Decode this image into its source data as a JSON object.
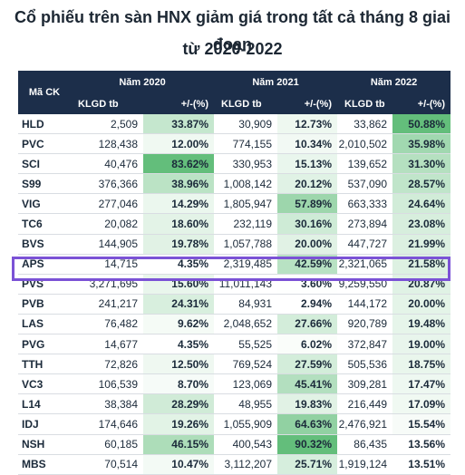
{
  "title": {
    "line1": "Cổ phiếu trên sàn HNX giảm giá trong tất cả tháng 8 giai đoạn",
    "line2": "từ 2020-2022"
  },
  "headers": {
    "code": "Mã CK",
    "years": [
      "Năm 2020",
      "Năm 2021",
      "Năm 2022"
    ],
    "klgd": "KLGD tb",
    "pct": "+/-(%)"
  },
  "rows": [
    {
      "code": "HLD",
      "v2020": "2,509",
      "p2020": "33.87%",
      "v2021": "30,909",
      "p2021": "12.73%",
      "v2022": "33,862",
      "p2022": "50.88%"
    },
    {
      "code": "PVC",
      "v2020": "128,438",
      "p2020": "12.00%",
      "v2021": "774,155",
      "p2021": "10.34%",
      "v2022": "2,010,502",
      "p2022": "35.98%"
    },
    {
      "code": "SCI",
      "v2020": "40,476",
      "p2020": "83.62%",
      "v2021": "330,953",
      "p2021": "15.13%",
      "v2022": "139,652",
      "p2022": "31.30%"
    },
    {
      "code": "S99",
      "v2020": "376,366",
      "p2020": "38.96%",
      "v2021": "1,008,142",
      "p2021": "20.12%",
      "v2022": "537,090",
      "p2022": "28.57%"
    },
    {
      "code": "VIG",
      "v2020": "277,046",
      "p2020": "14.29%",
      "v2021": "1,805,947",
      "p2021": "57.89%",
      "v2022": "663,333",
      "p2022": "24.64%"
    },
    {
      "code": "TC6",
      "v2020": "20,082",
      "p2020": "18.60%",
      "v2021": "232,119",
      "p2021": "30.16%",
      "v2022": "273,894",
      "p2022": "23.08%"
    },
    {
      "code": "BVS",
      "v2020": "144,905",
      "p2020": "19.78%",
      "v2021": "1,057,788",
      "p2021": "20.00%",
      "v2022": "447,727",
      "p2022": "21.99%"
    },
    {
      "code": "APS",
      "v2020": "14,715",
      "p2020": "4.35%",
      "v2021": "2,319,485",
      "p2021": "42.59%",
      "v2022": "2,321,065",
      "p2022": "21.58%"
    },
    {
      "code": "PVS",
      "v2020": "3,271,695",
      "p2020": "15.60%",
      "v2021": "11,011,143",
      "p2021": "3.60%",
      "v2022": "9,259,550",
      "p2022": "20.87%"
    },
    {
      "code": "PVB",
      "v2020": "241,217",
      "p2020": "24.31%",
      "v2021": "84,931",
      "p2021": "2.94%",
      "v2022": "144,172",
      "p2022": "20.00%"
    },
    {
      "code": "LAS",
      "v2020": "76,482",
      "p2020": "9.62%",
      "v2021": "2,048,652",
      "p2021": "27.66%",
      "v2022": "920,789",
      "p2022": "19.48%"
    },
    {
      "code": "PVG",
      "v2020": "14,677",
      "p2020": "4.35%",
      "v2021": "55,525",
      "p2021": "6.02%",
      "v2022": "372,847",
      "p2022": "19.00%"
    },
    {
      "code": "TTH",
      "v2020": "72,826",
      "p2020": "12.50%",
      "v2021": "769,524",
      "p2021": "27.59%",
      "v2022": "505,536",
      "p2022": "18.75%"
    },
    {
      "code": "VC3",
      "v2020": "106,539",
      "p2020": "8.70%",
      "v2021": "123,069",
      "p2021": "45.41%",
      "v2022": "309,281",
      "p2022": "17.47%"
    },
    {
      "code": "L14",
      "v2020": "38,384",
      "p2020": "28.29%",
      "v2021": "48,955",
      "p2021": "19.83%",
      "v2022": "216,449",
      "p2022": "17.09%"
    },
    {
      "code": "IDJ",
      "v2020": "174,646",
      "p2020": "19.26%",
      "v2021": "1,055,909",
      "p2021": "64.63%",
      "v2022": "2,476,921",
      "p2022": "15.54%"
    },
    {
      "code": "NSH",
      "v2020": "60,185",
      "p2020": "46.15%",
      "v2021": "400,543",
      "p2021": "90.32%",
      "v2022": "86,435",
      "p2022": "13.56%"
    },
    {
      "code": "MBS",
      "v2020": "70,514",
      "p2020": "10.47%",
      "v2021": "3,112,207",
      "p2021": "25.71%",
      "v2022": "1,919,124",
      "p2022": "13.51%"
    }
  ],
  "highlight_row": "PVS"
}
